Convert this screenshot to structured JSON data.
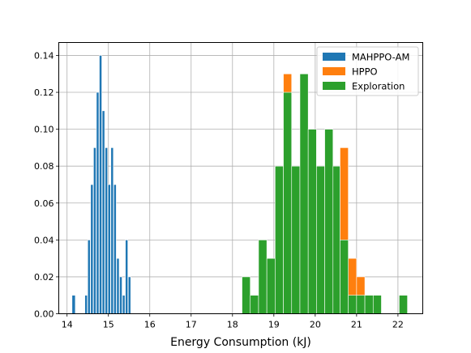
{
  "chart_data": {
    "type": "histogram",
    "xlabel": "Energy Consumption (kJ)",
    "ylabel": "",
    "xlim": [
      13.8,
      22.6
    ],
    "ylim": [
      0,
      0.147
    ],
    "xticks": [
      14,
      15,
      16,
      17,
      18,
      19,
      20,
      21,
      22
    ],
    "yticks": [
      0.0,
      0.02,
      0.04,
      0.06,
      0.08,
      0.1,
      0.12,
      0.14
    ],
    "grid": true,
    "legend_position": "top-right",
    "series": [
      {
        "name": "MAHPPO-AM",
        "color": "#1f77b4",
        "bins": [
          {
            "x0": 14.12,
            "x1": 14.2,
            "y": 0.01
          },
          {
            "x0": 14.43,
            "x1": 14.49,
            "y": 0.01
          },
          {
            "x0": 14.5,
            "x1": 14.56,
            "y": 0.04
          },
          {
            "x0": 14.57,
            "x1": 14.63,
            "y": 0.07
          },
          {
            "x0": 14.64,
            "x1": 14.7,
            "y": 0.09
          },
          {
            "x0": 14.71,
            "x1": 14.77,
            "y": 0.12
          },
          {
            "x0": 14.78,
            "x1": 14.84,
            "y": 0.14
          },
          {
            "x0": 14.85,
            "x1": 14.91,
            "y": 0.11
          },
          {
            "x0": 14.92,
            "x1": 14.98,
            "y": 0.09
          },
          {
            "x0": 14.99,
            "x1": 15.05,
            "y": 0.07
          },
          {
            "x0": 15.06,
            "x1": 15.12,
            "y": 0.09
          },
          {
            "x0": 15.13,
            "x1": 15.19,
            "y": 0.07
          },
          {
            "x0": 15.2,
            "x1": 15.26,
            "y": 0.03
          },
          {
            "x0": 15.27,
            "x1": 15.33,
            "y": 0.02
          },
          {
            "x0": 15.34,
            "x1": 15.4,
            "y": 0.01
          },
          {
            "x0": 15.41,
            "x1": 15.47,
            "y": 0.04
          },
          {
            "x0": 15.48,
            "x1": 15.54,
            "y": 0.02
          }
        ]
      },
      {
        "name": "HPPO",
        "color": "#ff7f0e",
        "bins": [
          {
            "x0": 19.23,
            "x1": 19.43,
            "y": 0.13
          },
          {
            "x0": 19.63,
            "x1": 19.83,
            "y": 0.09
          },
          {
            "x0": 20.6,
            "x1": 20.8,
            "y": 0.09
          },
          {
            "x0": 20.8,
            "x1": 21.0,
            "y": 0.03
          },
          {
            "x0": 21.0,
            "x1": 21.2,
            "y": 0.02
          }
        ]
      },
      {
        "name": "Exploration",
        "color": "#2ca02c",
        "bins": [
          {
            "x0": 18.23,
            "x1": 18.43,
            "y": 0.02
          },
          {
            "x0": 18.43,
            "x1": 18.63,
            "y": 0.01
          },
          {
            "x0": 18.63,
            "x1": 18.83,
            "y": 0.04
          },
          {
            "x0": 18.83,
            "x1": 19.03,
            "y": 0.03
          },
          {
            "x0": 19.03,
            "x1": 19.23,
            "y": 0.08
          },
          {
            "x0": 19.23,
            "x1": 19.43,
            "y": 0.12
          },
          {
            "x0": 19.43,
            "x1": 19.63,
            "y": 0.08
          },
          {
            "x0": 19.63,
            "x1": 19.83,
            "y": 0.13
          },
          {
            "x0": 19.83,
            "x1": 20.03,
            "y": 0.1
          },
          {
            "x0": 20.03,
            "x1": 20.23,
            "y": 0.08
          },
          {
            "x0": 20.23,
            "x1": 20.43,
            "y": 0.1
          },
          {
            "x0": 20.43,
            "x1": 20.6,
            "y": 0.08
          },
          {
            "x0": 20.6,
            "x1": 20.8,
            "y": 0.04
          },
          {
            "x0": 20.8,
            "x1": 21.0,
            "y": 0.01
          },
          {
            "x0": 21.0,
            "x1": 21.2,
            "y": 0.01
          },
          {
            "x0": 21.2,
            "x1": 21.4,
            "y": 0.01
          },
          {
            "x0": 21.4,
            "x1": 21.6,
            "y": 0.01
          },
          {
            "x0": 22.03,
            "x1": 22.23,
            "y": 0.01
          }
        ]
      }
    ]
  }
}
